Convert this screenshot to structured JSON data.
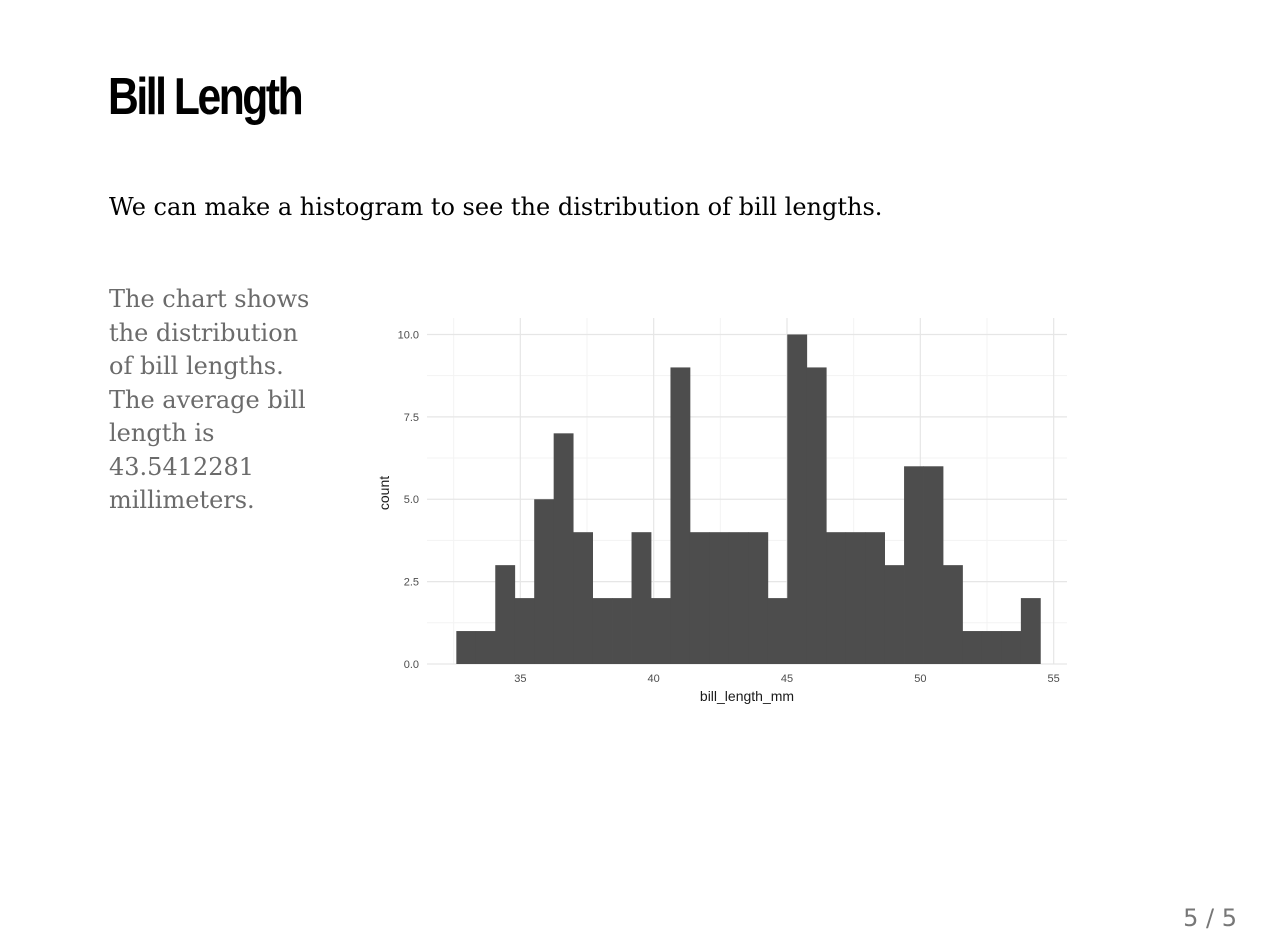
{
  "slide": {
    "title": "Bill Length",
    "intro": "We can make a histogram to see the distribution of bill lengths.",
    "aside": "The chart shows the distribution of bill lengths. The average bill length is 43.5412281 millimeters.",
    "page_number": "5 / 5"
  },
  "chart_data": {
    "type": "bar",
    "subtype": "histogram",
    "xlabel": "bill_length_mm",
    "ylabel": "count",
    "xlim": [
      31.5,
      55.5
    ],
    "ylim": [
      0,
      10.5
    ],
    "x_ticks": [
      35,
      40,
      45,
      50,
      55
    ],
    "y_ticks": [
      0.0,
      2.5,
      5.0,
      7.5,
      10.0
    ],
    "x_tick_labels": [
      "35",
      "40",
      "45",
      "50",
      "55"
    ],
    "y_tick_labels": [
      "0.0",
      "2.5",
      "5.0",
      "7.5",
      "10.0"
    ],
    "grid": true,
    "bar_color": "#4d4d4d",
    "bins": [
      {
        "x0": 32.6,
        "x1": 33.33,
        "count": 1
      },
      {
        "x0": 33.33,
        "x1": 34.06,
        "count": 1
      },
      {
        "x0": 34.06,
        "x1": 34.79,
        "count": 3
      },
      {
        "x0": 34.79,
        "x1": 35.52,
        "count": 2
      },
      {
        "x0": 35.52,
        "x1": 36.25,
        "count": 5
      },
      {
        "x0": 36.25,
        "x1": 36.98,
        "count": 7
      },
      {
        "x0": 36.98,
        "x1": 37.71,
        "count": 4
      },
      {
        "x0": 37.71,
        "x1": 38.44,
        "count": 2
      },
      {
        "x0": 38.44,
        "x1": 39.17,
        "count": 2
      },
      {
        "x0": 39.17,
        "x1": 39.9,
        "count": 4
      },
      {
        "x0": 39.9,
        "x1": 40.63,
        "count": 2
      },
      {
        "x0": 40.63,
        "x1": 41.36,
        "count": 9
      },
      {
        "x0": 41.36,
        "x1": 42.09,
        "count": 4
      },
      {
        "x0": 42.09,
        "x1": 42.82,
        "count": 4
      },
      {
        "x0": 42.82,
        "x1": 43.55,
        "count": 4
      },
      {
        "x0": 43.55,
        "x1": 44.28,
        "count": 4
      },
      {
        "x0": 44.28,
        "x1": 45.01,
        "count": 2
      },
      {
        "x0": 45.01,
        "x1": 45.74,
        "count": 10
      },
      {
        "x0": 45.74,
        "x1": 46.47,
        "count": 9
      },
      {
        "x0": 46.47,
        "x1": 47.2,
        "count": 4
      },
      {
        "x0": 47.2,
        "x1": 47.93,
        "count": 4
      },
      {
        "x0": 47.93,
        "x1": 48.66,
        "count": 4
      },
      {
        "x0": 48.66,
        "x1": 49.39,
        "count": 3
      },
      {
        "x0": 49.39,
        "x1": 50.12,
        "count": 6
      },
      {
        "x0": 50.12,
        "x1": 50.85,
        "count": 6
      },
      {
        "x0": 50.85,
        "x1": 51.58,
        "count": 3
      },
      {
        "x0": 51.58,
        "x1": 52.31,
        "count": 1
      },
      {
        "x0": 52.31,
        "x1": 53.04,
        "count": 1
      },
      {
        "x0": 53.04,
        "x1": 53.77,
        "count": 1
      },
      {
        "x0": 53.77,
        "x1": 54.5,
        "count": 2
      }
    ]
  }
}
